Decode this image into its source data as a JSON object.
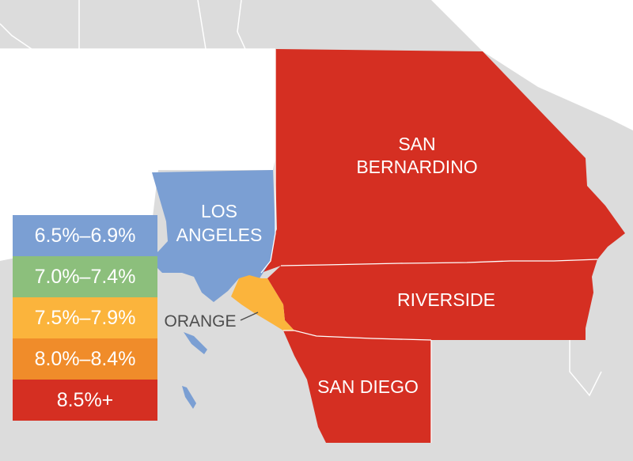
{
  "counties": {
    "san_bernardino": {
      "line1": "SAN",
      "line2": "BERNARDINO",
      "color": "#d52f22"
    },
    "los_angeles": {
      "line1": "LOS",
      "line2": "ANGELES",
      "color": "#7b9fd3"
    },
    "riverside": {
      "label": "RIVERSIDE",
      "color": "#d52f22"
    },
    "orange": {
      "label": "ORANGE",
      "color": "#fbb43c"
    },
    "san_diego": {
      "label": "SAN DIEGO",
      "color": "#d52f22"
    }
  },
  "background_land_color": "#dcdcdc",
  "legend": [
    {
      "label": "6.5%–6.9%",
      "color": "#7b9fd3"
    },
    {
      "label": "7.0%–7.4%",
      "color": "#8cbf7c"
    },
    {
      "label": "7.5%–7.9%",
      "color": "#fbb43c"
    },
    {
      "label": "8.0%–8.4%",
      "color": "#f08c2a"
    },
    {
      "label": "8.5%+",
      "color": "#d52f22"
    }
  ]
}
